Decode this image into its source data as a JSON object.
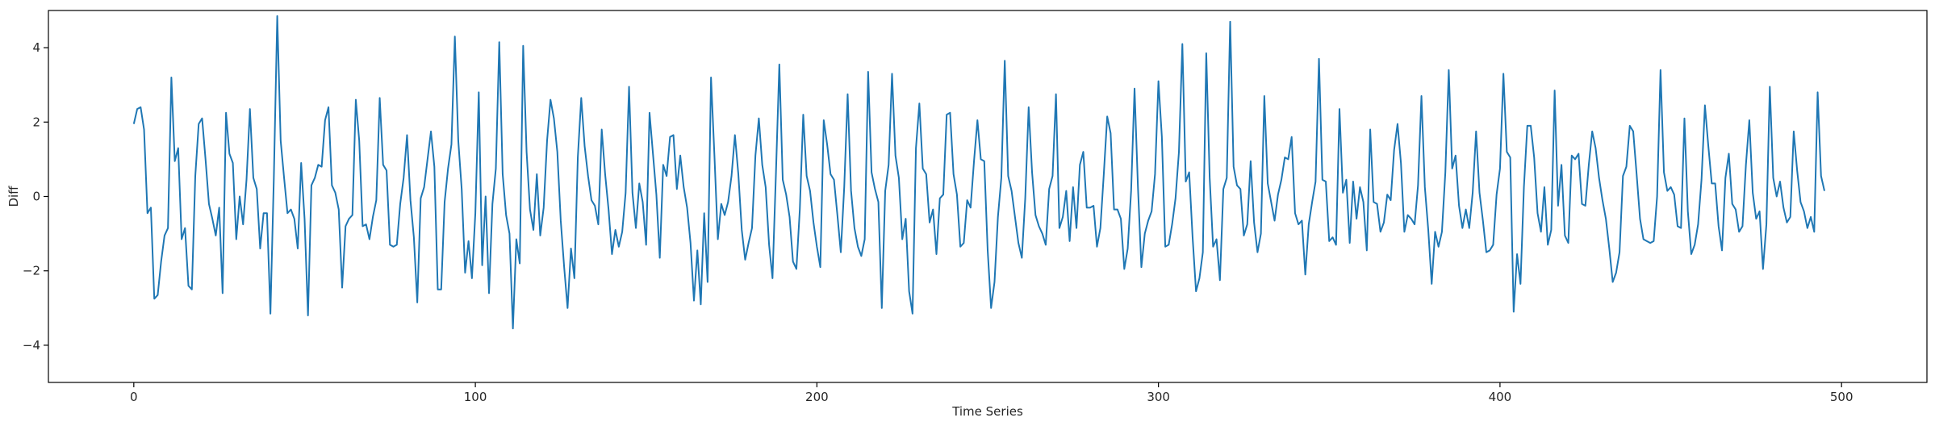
{
  "chart_data": {
    "type": "line",
    "title": "",
    "xlabel": "Time Series",
    "ylabel": "Diff",
    "xlim": [
      -25,
      525
    ],
    "ylim": [
      -5,
      5
    ],
    "xticks": [
      0,
      100,
      200,
      300,
      400,
      500
    ],
    "yticks": [
      -4,
      -2,
      0,
      2,
      4
    ],
    "grid": false,
    "line_color": "#1f77b4",
    "series": [
      {
        "x_start": 0,
        "x_step": 1,
        "values": [
          1.95,
          2.35,
          2.4,
          1.8,
          -0.45,
          -0.3,
          -2.75,
          -2.65,
          -1.75,
          -1.05,
          -0.85,
          3.2,
          0.95,
          1.3,
          -1.15,
          -0.85,
          -2.4,
          -2.5,
          0.55,
          1.95,
          2.1,
          1.0,
          -0.2,
          -0.6,
          -1.05,
          -0.3,
          -2.6,
          2.25,
          1.15,
          0.9,
          -1.15,
          0.0,
          -0.75,
          0.45,
          2.35,
          0.5,
          0.2,
          -1.4,
          -0.45,
          -0.45,
          -3.15,
          0.5,
          4.85,
          1.5,
          0.5,
          -0.45,
          -0.35,
          -0.6,
          -1.4,
          0.9,
          -0.6,
          -3.2,
          0.3,
          0.5,
          0.85,
          0.8,
          2.05,
          2.4,
          0.3,
          0.1,
          -0.35,
          -2.45,
          -0.8,
          -0.6,
          -0.5,
          2.6,
          1.5,
          -0.8,
          -0.75,
          -1.15,
          -0.55,
          -0.1,
          2.65,
          0.85,
          0.7,
          -1.3,
          -1.35,
          -1.3,
          -0.2,
          0.5,
          1.65,
          -0.1,
          -1.1,
          -2.85,
          -0.05,
          0.25,
          1.0,
          1.75,
          0.8,
          -2.5,
          -2.5,
          -0.15,
          0.75,
          1.4,
          4.3,
          1.5,
          0.2,
          -2.05,
          -1.2,
          -2.2,
          -0.45,
          2.8,
          -1.85,
          0.0,
          -2.6,
          -0.2,
          0.75,
          4.15,
          0.6,
          -0.5,
          -1.0,
          -3.55,
          -1.15,
          -1.8,
          4.05,
          1.2,
          -0.35,
          -0.9,
          0.6,
          -1.05,
          -0.3,
          1.5,
          2.6,
          2.1,
          1.2,
          -0.65,
          -1.9,
          -3.0,
          -1.4,
          -2.2,
          1.05,
          2.65,
          1.35,
          0.55,
          -0.1,
          -0.25,
          -0.75,
          1.8,
          0.6,
          -0.35,
          -1.55,
          -0.9,
          -1.35,
          -0.95,
          0.1,
          2.95,
          0.1,
          -0.85,
          0.35,
          -0.15,
          -1.3,
          2.25,
          1.15,
          0.05,
          -1.65,
          0.85,
          0.55,
          1.6,
          1.65,
          0.2,
          1.1,
          0.25,
          -0.3,
          -1.25,
          -2.8,
          -1.45,
          -2.9,
          -0.45,
          -2.3,
          3.2,
          1.1,
          -1.15,
          -0.2,
          -0.5,
          -0.15,
          0.55,
          1.65,
          0.6,
          -0.9,
          -1.7,
          -1.25,
          -0.85,
          1.1,
          2.1,
          0.85,
          0.25,
          -1.3,
          -2.2,
          0.6,
          3.55,
          0.45,
          0.05,
          -0.55,
          -1.75,
          -1.95,
          -0.35,
          2.2,
          0.55,
          0.15,
          -0.7,
          -1.35,
          -1.9,
          2.05,
          1.4,
          0.6,
          0.45,
          -0.5,
          -1.5,
          0.25,
          2.75,
          0.15,
          -0.85,
          -1.35,
          -1.6,
          -1.15,
          3.35,
          0.65,
          0.2,
          -0.15,
          -3.0,
          0.15,
          0.85,
          3.3,
          1.1,
          0.5,
          -1.15,
          -0.6,
          -2.55,
          -3.15,
          1.3,
          2.5,
          0.75,
          0.6,
          -0.7,
          -0.35,
          -1.55,
          -0.05,
          0.05,
          2.2,
          2.25,
          0.6,
          0.05,
          -1.35,
          -1.25,
          -0.1,
          -0.3,
          0.95,
          2.05,
          1.0,
          0.95,
          -1.45,
          -3.0,
          -2.3,
          -0.55,
          0.5,
          3.65,
          0.55,
          0.15,
          -0.55,
          -1.25,
          -1.65,
          -0.05,
          2.4,
          0.65,
          -0.5,
          -0.8,
          -1.0,
          -1.3,
          0.2,
          0.55,
          2.75,
          -0.85,
          -0.55,
          0.15,
          -1.2,
          0.25,
          -0.85,
          0.85,
          1.2,
          -0.3,
          -0.3,
          -0.25,
          -1.35,
          -0.85,
          0.6,
          2.15,
          1.7,
          -0.35,
          -0.35,
          -0.6,
          -1.95,
          -1.4,
          0.15,
          2.9,
          0.25,
          -1.9,
          -1.0,
          -0.65,
          -0.4,
          0.6,
          3.1,
          1.6,
          -1.35,
          -1.3,
          -0.75,
          -0.05,
          1.2,
          4.1,
          0.4,
          0.65,
          -1.1,
          -2.55,
          -2.2,
          -1.5,
          3.85,
          0.5,
          -1.35,
          -1.15,
          -2.25,
          0.2,
          0.5,
          4.7,
          0.8,
          0.3,
          0.2,
          -1.05,
          -0.75,
          0.95,
          -0.7,
          -1.5,
          -1.0,
          2.7,
          0.35,
          -0.15,
          -0.65,
          0.05,
          0.45,
          1.05,
          1.0,
          1.6,
          -0.45,
          -0.75,
          -0.65,
          -2.1,
          -0.75,
          -0.15,
          0.4,
          3.7,
          0.45,
          0.4,
          -1.2,
          -1.1,
          -1.3,
          2.35,
          0.1,
          0.45,
          -1.25,
          0.4,
          -0.6,
          0.25,
          -0.15,
          -1.45,
          1.8,
          -0.15,
          -0.2,
          -0.95,
          -0.7,
          0.05,
          -0.1,
          1.25,
          1.95,
          0.9,
          -0.95,
          -0.5,
          -0.6,
          -0.75,
          0.3,
          2.7,
          0.25,
          -0.9,
          -2.35,
          -0.95,
          -1.35,
          -0.95,
          0.65,
          3.4,
          0.75,
          1.1,
          -0.25,
          -0.85,
          -0.35,
          -0.85,
          0.1,
          1.75,
          0.1,
          -0.65,
          -1.5,
          -1.45,
          -1.3,
          0.05,
          0.75,
          3.3,
          1.2,
          1.05,
          -3.1,
          -1.55,
          -2.35,
          0.25,
          1.9,
          1.9,
          1.05,
          -0.45,
          -0.95,
          0.25,
          -1.3,
          -0.9,
          2.85,
          -0.25,
          0.85,
          -1.05,
          -1.25,
          1.1,
          1.0,
          1.15,
          -0.2,
          -0.25,
          0.85,
          1.75,
          1.3,
          0.5,
          -0.1,
          -0.6,
          -1.4,
          -2.3,
          -2.05,
          -1.5,
          0.55,
          0.8,
          1.9,
          1.75,
          0.6,
          -0.6,
          -1.15,
          -1.2,
          -1.25,
          -1.2,
          0.0,
          3.4,
          0.65,
          0.15,
          0.25,
          0.05,
          -0.8,
          -0.85,
          2.1,
          -0.4,
          -1.55,
          -1.3,
          -0.75,
          0.45,
          2.45,
          1.35,
          0.35,
          0.35,
          -0.8,
          -1.45,
          0.5,
          1.15,
          -0.2,
          -0.35,
          -0.95,
          -0.8,
          0.85,
          2.05,
          0.1,
          -0.6,
          -0.4,
          -1.95,
          -0.75,
          2.95,
          0.5,
          0.0,
          0.4,
          -0.3,
          -0.7,
          -0.55,
          1.75,
          0.7,
          -0.15,
          -0.4,
          -0.85,
          -0.55,
          -0.95,
          2.8,
          0.55,
          0.15
        ]
      }
    ]
  }
}
